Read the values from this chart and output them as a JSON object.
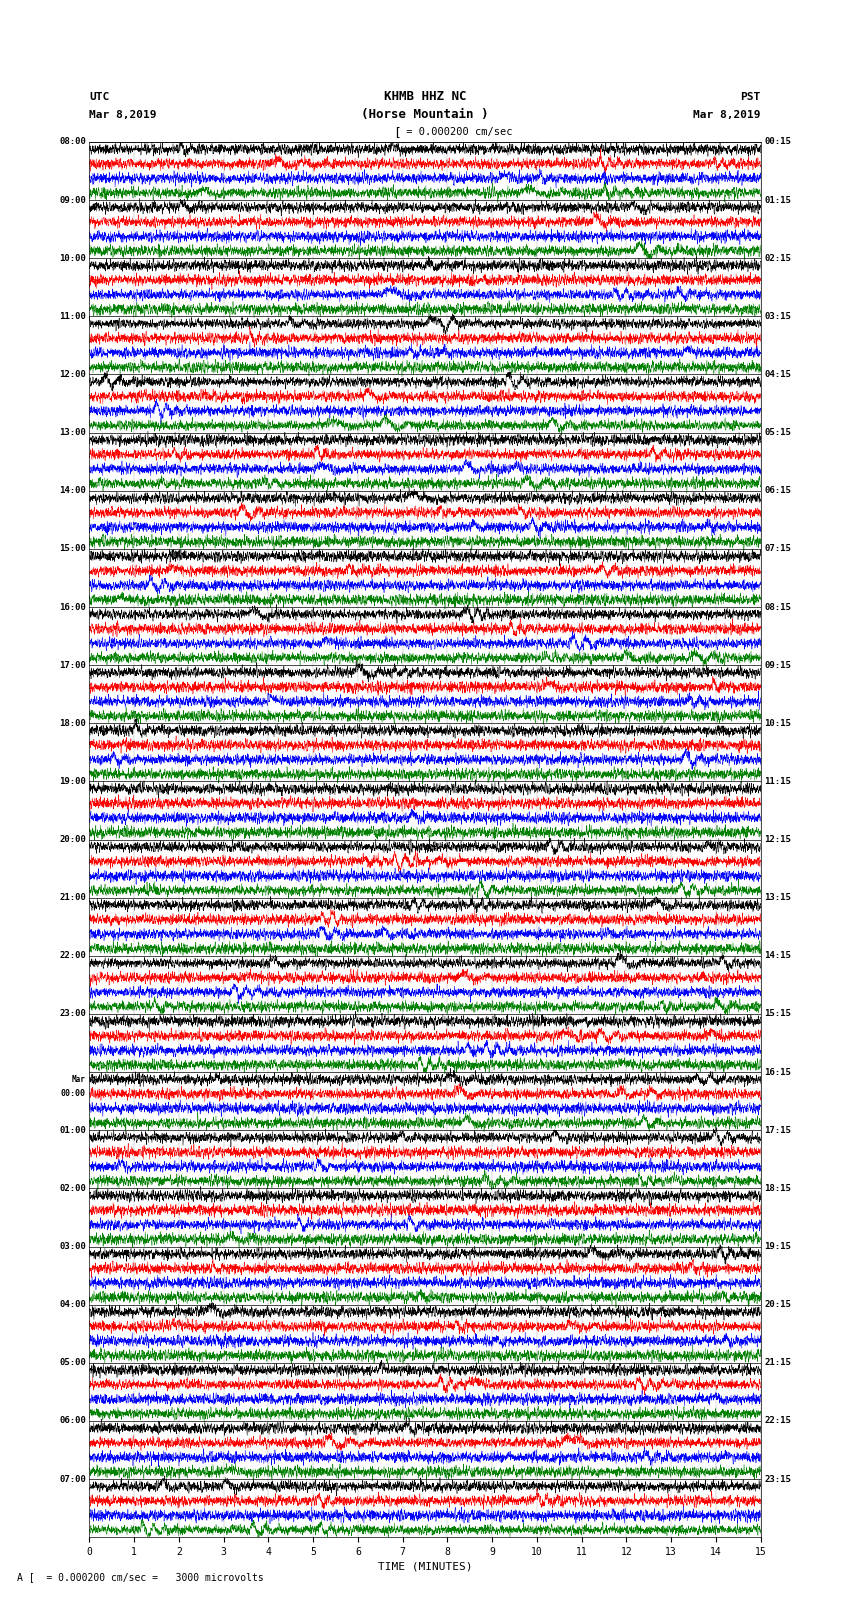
{
  "title_line1": "KHMB HHZ NC",
  "title_line2": "(Horse Mountain )",
  "scale_text": "= 0.000200 cm/sec",
  "footer_text": "= 0.000200 cm/sec =   3000 microvolts",
  "xlabel": "TIME (MINUTES)",
  "left_header": [
    "UTC",
    "Mar 8,2019"
  ],
  "right_header": [
    "PST",
    "Mar 8,2019"
  ],
  "utc_times": [
    "08:00",
    "09:00",
    "10:00",
    "11:00",
    "12:00",
    "13:00",
    "14:00",
    "15:00",
    "16:00",
    "17:00",
    "18:00",
    "19:00",
    "20:00",
    "21:00",
    "22:00",
    "23:00",
    "Mar\n00:00",
    "01:00",
    "02:00",
    "03:00",
    "04:00",
    "05:00",
    "06:00",
    "07:00"
  ],
  "pst_times": [
    "00:15",
    "01:15",
    "02:15",
    "03:15",
    "04:15",
    "05:15",
    "06:15",
    "07:15",
    "08:15",
    "09:15",
    "10:15",
    "11:15",
    "12:15",
    "13:15",
    "14:15",
    "15:15",
    "16:15",
    "17:15",
    "18:15",
    "19:15",
    "20:15",
    "21:15",
    "22:15",
    "23:15"
  ],
  "n_rows": 24,
  "traces_per_row": 4,
  "colors": [
    "black",
    "red",
    "blue",
    "green"
  ],
  "bg_color": "#ffffff",
  "x_ticks": [
    0,
    1,
    2,
    3,
    4,
    5,
    6,
    7,
    8,
    9,
    10,
    11,
    12,
    13,
    14,
    15
  ],
  "x_lim": [
    0,
    15
  ],
  "seed": 42,
  "fig_width": 8.5,
  "fig_height": 16.13,
  "dpi": 100
}
